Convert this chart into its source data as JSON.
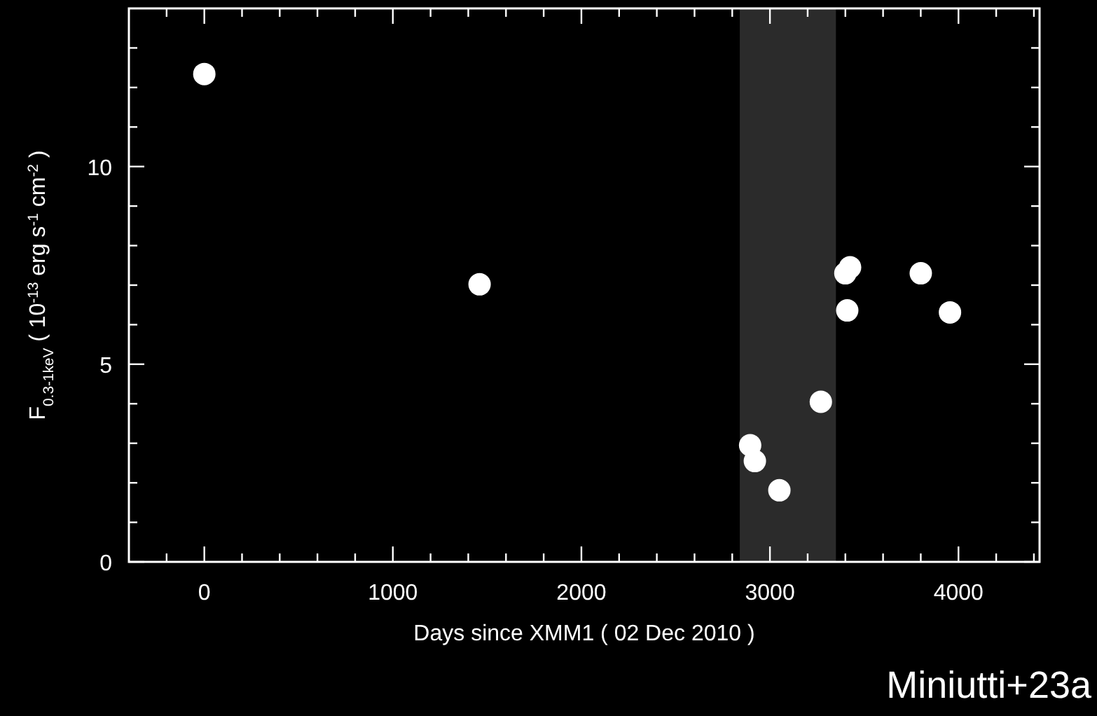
{
  "chart_data": {
    "type": "scatter",
    "xlabel": "Days since XMM1 ( 02 Dec 2010 )",
    "ylabel": "F$_{0.3-1keV}$ ( 10$^{-13}$ erg s$^{-1}$ cm$^{-2}$ )",
    "x": [
      0,
      1460,
      2895,
      2920,
      3050,
      3270,
      3400,
      3425,
      3410,
      3800,
      3955
    ],
    "series": [
      {
        "color": "#ffffff",
        "values": [
          12.34,
          7.02,
          2.95,
          2.55,
          1.81,
          4.05,
          7.3,
          7.45,
          6.36,
          7.3,
          6.31
        ]
      }
    ],
    "xlim": [
      -400,
      4430
    ],
    "ylim": [
      0,
      14
    ],
    "xticks": [
      {
        "value": -200,
        "label": null
      },
      0,
      {
        "value": 200,
        "label": null
      },
      {
        "value": 400,
        "label": null
      },
      {
        "value": 600,
        "label": null
      },
      {
        "value": 800,
        "label": null
      },
      1000,
      {
        "value": 1200,
        "label": null
      },
      {
        "value": 1400,
        "label": null
      },
      {
        "value": 1600,
        "label": null
      },
      {
        "value": 1800,
        "label": null
      },
      2000,
      {
        "value": 2200,
        "label": null
      },
      {
        "value": 2400,
        "label": null
      },
      {
        "value": 2600,
        "label": null
      },
      {
        "value": 2800,
        "label": null
      },
      3000,
      {
        "value": 3200,
        "label": null
      },
      {
        "value": 3400,
        "label": null
      },
      {
        "value": 3600,
        "label": null
      },
      {
        "value": 3800,
        "label": null
      },
      4000,
      {
        "value": 4200,
        "label": null
      },
      {
        "value": 4400,
        "label": null
      }
    ],
    "yticks": [
      0,
      {
        "value": 1,
        "label": null
      },
      {
        "value": 2,
        "label": null
      },
      {
        "value": 3,
        "label": null
      },
      {
        "value": 4,
        "label": null
      },
      5,
      {
        "value": 6,
        "label": null
      },
      {
        "value": 7,
        "label": null
      },
      {
        "value": 8,
        "label": null
      },
      {
        "value": 9,
        "label": null
      },
      10,
      {
        "value": 11,
        "label": null
      },
      {
        "value": 12,
        "label": null
      },
      {
        "value": 13,
        "label": null
      }
    ],
    "bands": [
      {
        "axis": "x",
        "from": 2840,
        "to": 3350,
        "color": "#2b2b2b"
      }
    ],
    "marker": "circle",
    "annotations": [
      "Miniutti+23a"
    ]
  }
}
